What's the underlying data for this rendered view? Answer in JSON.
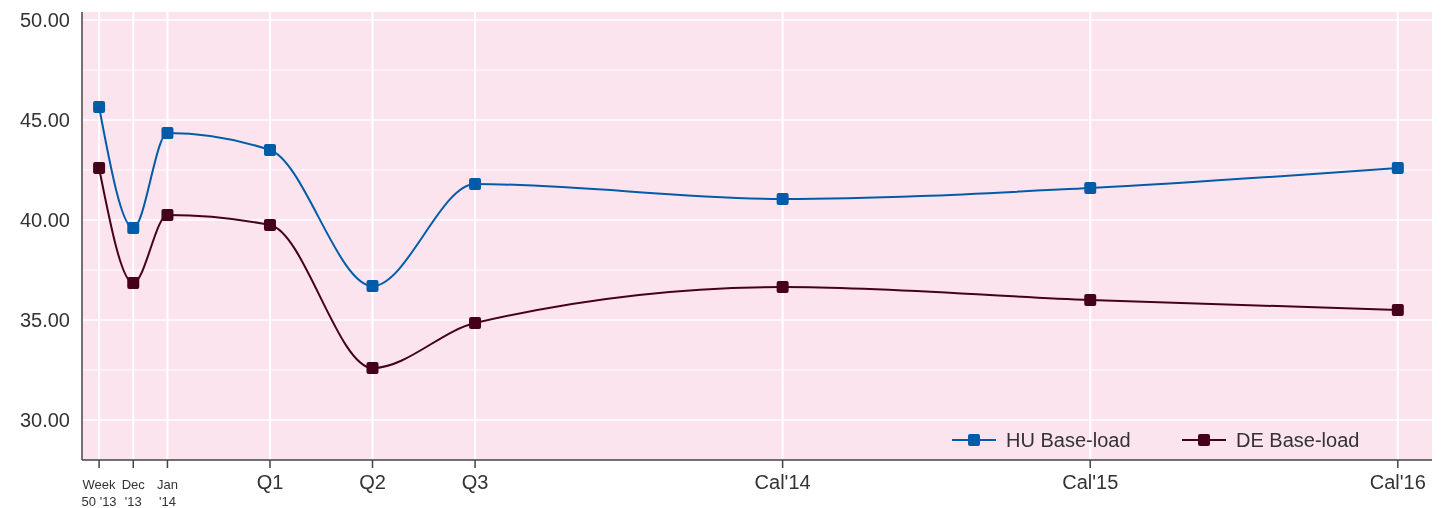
{
  "chart_data": {
    "type": "line",
    "categories": [
      "Week\n50 '13",
      "Dec\n'13",
      "Jan\n'14",
      null,
      null,
      "Q1",
      null,
      null,
      "Q2",
      null,
      null,
      "Q3",
      null,
      null,
      null,
      null,
      null,
      null,
      null,
      null,
      "Cal'14",
      null,
      null,
      null,
      null,
      null,
      null,
      null,
      null,
      "Cal'15",
      null,
      null,
      null,
      null,
      null,
      null,
      null,
      null,
      "Cal'16"
    ],
    "ylim": [
      28,
      50.4
    ],
    "yticks": [
      {
        "value": 30,
        "label": "30.00"
      },
      {
        "value": 32.5,
        "label": null
      },
      {
        "value": 35,
        "label": "35.00"
      },
      {
        "value": 37.5,
        "label": null
      },
      {
        "value": 40,
        "label": "40.00"
      },
      {
        "value": 42.5,
        "label": null
      },
      {
        "value": 45,
        "label": "45.00"
      },
      {
        "value": 47.5,
        "label": null
      },
      {
        "value": 50,
        "label": "50.00"
      }
    ],
    "series": [
      {
        "name": "HU Base-load",
        "color": "#005ca9",
        "values": [
          45.65,
          39.6,
          44.35,
          null,
          null,
          43.5,
          null,
          null,
          36.7,
          null,
          null,
          41.8,
          null,
          null,
          null,
          null,
          null,
          null,
          null,
          null,
          41.05,
          null,
          null,
          null,
          null,
          null,
          null,
          null,
          null,
          41.6,
          null,
          null,
          null,
          null,
          null,
          null,
          null,
          null,
          42.6
        ]
      },
      {
        "name": "DE Base-load",
        "color": "#45001a",
        "values": [
          42.6,
          36.85,
          40.25,
          null,
          null,
          39.75,
          null,
          null,
          32.6,
          null,
          null,
          34.85,
          null,
          null,
          null,
          null,
          null,
          null,
          null,
          null,
          36.65,
          null,
          null,
          null,
          null,
          null,
          null,
          null,
          null,
          36.0,
          null,
          null,
          null,
          null,
          null,
          null,
          null,
          null,
          35.5
        ]
      }
    ],
    "grid": true,
    "legend": "bottom right",
    "marker": "square",
    "line_style": "solid"
  }
}
